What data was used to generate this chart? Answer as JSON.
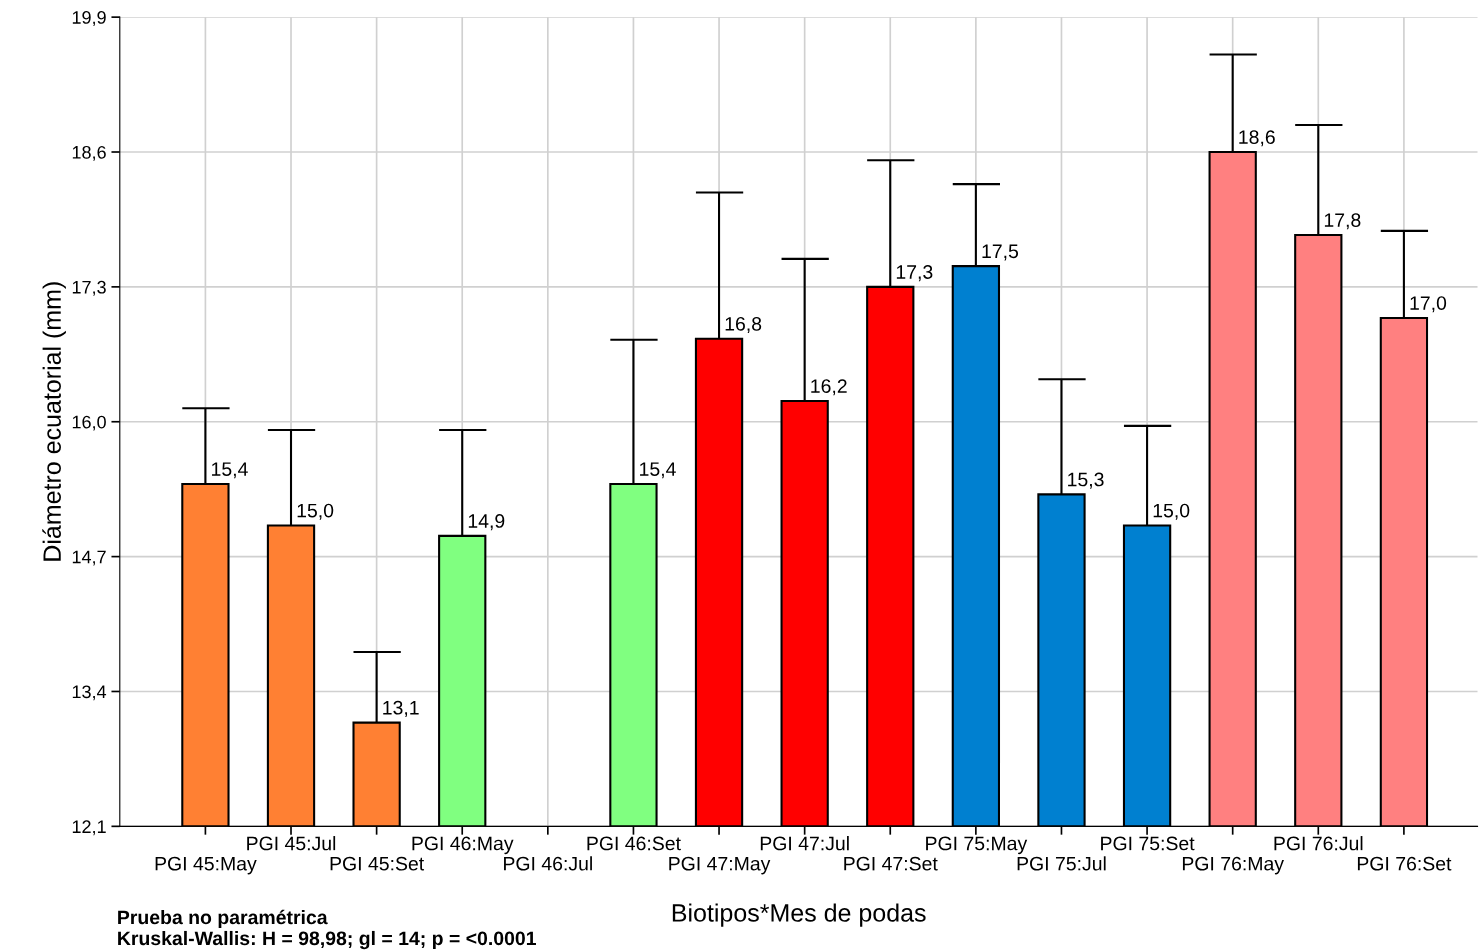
{
  "chart_data": {
    "type": "bar",
    "xlabel": "Biotipos*Mes de podas",
    "ylabel": "Diámetro ecuatorial (mm)",
    "categories": [
      "PGI 45:May",
      "PGI 45:Jul",
      "PGI 45:Set",
      "PGI 46:May",
      "PGI 46:Jul",
      "PGI 46:Set",
      "PGI 47:May",
      "PGI 47:Jul",
      "PGI 47:Set",
      "PGI 75:May",
      "PGI 75:Jul",
      "PGI 75:Set",
      "PGI 76:May",
      "PGI 76:Jul",
      "PGI 76:Set"
    ],
    "values": [
      15.4,
      15.0,
      13.1,
      14.9,
      null,
      15.4,
      16.8,
      16.2,
      17.3,
      17.5,
      15.3,
      15.0,
      18.6,
      17.8,
      17.0
    ],
    "value_labels": [
      "15,4",
      "15,0",
      "13,1",
      "14,9",
      null,
      "15,4",
      "16,8",
      "16,2",
      "17,3",
      "17,5",
      "15,3",
      "15,0",
      "18,6",
      "17,8",
      "17,0"
    ],
    "errors": [
      0.73,
      0.92,
      0.68,
      1.02,
      null,
      1.39,
      1.41,
      1.37,
      1.22,
      0.79,
      1.11,
      0.96,
      0.94,
      1.06,
      0.84
    ],
    "colors": [
      "#ff8033",
      "#ff8033",
      "#ff8033",
      "#80ff80",
      "#80ff80",
      "#80ff80",
      "#ff0000",
      "#ff0000",
      "#ff0000",
      "#0080d0",
      "#0080d0",
      "#0080d0",
      "#ff8080",
      "#ff8080",
      "#ff8080"
    ],
    "ylim": [
      12.1,
      19.9
    ],
    "yticks": [
      {
        "value": 12.1,
        "label": "12,1"
      },
      {
        "value": 13.4,
        "label": "13,4"
      },
      {
        "value": 14.7,
        "label": "14,7"
      },
      {
        "value": 16.0,
        "label": "16,0"
      },
      {
        "value": 17.3,
        "label": "17,3"
      },
      {
        "value": 18.6,
        "label": "18,6"
      },
      {
        "value": 19.9,
        "label": "19,9"
      }
    ],
    "grid": true,
    "legend": false,
    "annotations": [
      "Prueba no paramétrica\nKruskal-Wallis: H = 98,98; gl = 14; p = <0.0001"
    ]
  }
}
